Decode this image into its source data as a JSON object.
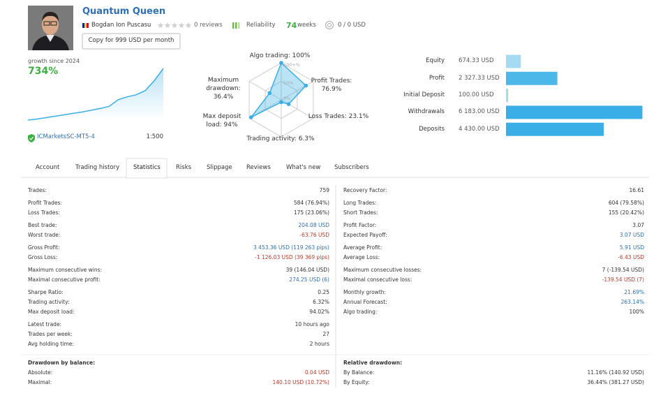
{
  "header": {
    "title": "Quantum Queen",
    "author": "Bogdan Ion Puscasu",
    "reviews": "0 reviews",
    "reliability": "Reliability",
    "weeks": "74",
    "weeks_unit": "weeks",
    "subscription": "0 / 0 USD",
    "copy_button": "Copy for 999 USD per month"
  },
  "broker": {
    "server": "ICMarketsSC-MT5-4",
    "leverage": "1:500"
  },
  "chart_data": [
    {
      "type": "line",
      "title": "growth since 2024",
      "headline": "734%",
      "values": [
        0,
        15,
        35,
        55,
        75,
        95,
        115,
        140,
        165,
        195,
        290,
        330,
        360,
        420,
        560,
        734
      ],
      "ylim": [
        0,
        734
      ],
      "color": "#3aaee6"
    },
    {
      "type": "radar",
      "categories": [
        "Algo trading: 100%",
        "Profit Trades: 76.9%",
        "Loss Trades: 23.1%",
        "Trading activity: 6.3%",
        "Max deposit load: 94%",
        "Maximum drawdown: 36.4%"
      ],
      "values": [
        100,
        76.9,
        23.1,
        6.3,
        94,
        36.4
      ],
      "rlim": [
        0,
        100
      ],
      "rticks": [
        {
          "value": 0,
          "label": "0%"
        },
        {
          "value": 50,
          "label": "50%"
        },
        {
          "value": 100,
          "label": "100+%"
        }
      ],
      "color": "#3aaee6"
    },
    {
      "type": "bar",
      "orientation": "horizontal",
      "categories": [
        "Equity",
        "Profit",
        "Initial Deposit",
        "Withdrawals",
        "Deposits"
      ],
      "values": [
        674.33,
        2327.33,
        100.0,
        6183.0,
        4430.0
      ],
      "value_labels": [
        "674.33 USD",
        "2 327.33 USD",
        "100.00 USD",
        "6 183.00 USD",
        "4 430.00 USD"
      ],
      "colors": [
        "#a6daf3",
        "#4cb8e9",
        "#a6daf3",
        "#3aaee6",
        "#3aaee6"
      ],
      "xlim": [
        0,
        6200
      ]
    }
  ],
  "tabs": {
    "items": [
      "Account",
      "Trading history",
      "Statistics",
      "Risks",
      "Slippage",
      "Reviews",
      "What's new",
      "Subscribers"
    ],
    "active": 2
  },
  "stats": {
    "left": [
      [
        {
          "label": "Trades:",
          "value": "759"
        }
      ],
      [
        {
          "label": "Profit Trades:",
          "value": "584 (76.94%)"
        },
        {
          "label": "Loss Trades:",
          "value": "175 (23.06%)"
        }
      ],
      [
        {
          "label": "Best trade:",
          "value": "204.08 USD",
          "color": "#2f6fb5"
        },
        {
          "label": "Worst trade:",
          "value": "-63.76 USD",
          "color": "#c0392b"
        }
      ],
      [
        {
          "label": "Gross Profit:",
          "value": "3 453.36 USD (119 263 pips)",
          "color": "#2f6fb5"
        },
        {
          "label": "Gross Loss:",
          "value": "-1 126.03 USD (39 369 pips)",
          "color": "#c0392b"
        }
      ],
      [
        {
          "label": "Maximum consecutive wins:",
          "value": "39 (146.04 USD)"
        },
        {
          "label": "Maximal consecutive profit:",
          "value": "274.25 USD (6)",
          "color": "#2f6fb5"
        }
      ],
      [
        {
          "label": "Sharpe Ratio:",
          "value": "0.25"
        },
        {
          "label": "Trading activity:",
          "value": "6.32%"
        },
        {
          "label": "Max deposit load:",
          "value": "94.02%"
        }
      ],
      [
        {
          "label": "Latest trade:",
          "value": "10 hours ago"
        },
        {
          "label": "Trades per week:",
          "value": "27"
        },
        {
          "label": "Avg holding time:",
          "value": "2 hours"
        }
      ]
    ],
    "right": [
      [
        {
          "label": "Recovery Factor:",
          "value": "16.61"
        }
      ],
      [
        {
          "label": "Long Trades:",
          "value": "604 (79.58%)"
        },
        {
          "label": "Short Trades:",
          "value": "155 (20.42%)"
        }
      ],
      [
        {
          "label": "Profit Factor:",
          "value": "3.07"
        },
        {
          "label": "Expected Payoff:",
          "value": "3.07 USD",
          "color": "#2f6fb5"
        }
      ],
      [
        {
          "label": "Average Profit:",
          "value": "5.91 USD",
          "color": "#2f6fb5"
        },
        {
          "label": "Average Loss:",
          "value": "-6.43 USD",
          "color": "#c0392b"
        }
      ],
      [
        {
          "label": "Maximum consecutive losses:",
          "value": "7 (-139.54 USD)"
        },
        {
          "label": "Maximal consecutive loss:",
          "value": "-139.54 USD (7)",
          "color": "#c0392b"
        }
      ],
      [
        {
          "label": "Monthly growth:",
          "value": "21.69%",
          "color": "#2f6fb5"
        },
        {
          "label": "Annual Forecast:",
          "value": "263.14%",
          "color": "#2f6fb5"
        },
        {
          "label": "Algo trading:",
          "value": "100%"
        }
      ]
    ]
  },
  "drawdown": {
    "left": {
      "title": "Drawdown by balance:",
      "rows": [
        {
          "label": "Absolute:",
          "value": "0.04 USD",
          "color": "#c0392b"
        },
        {
          "label": "Maximal:",
          "value": "140.10 USD (10.72%)",
          "color": "#c0392b"
        }
      ]
    },
    "right": {
      "title": "Relative drawdown:",
      "rows": [
        {
          "label": "By Balance:",
          "value": "11.16% (140.92 USD)"
        },
        {
          "label": "By Equity:",
          "value": "36.44% (381.27 USD)"
        }
      ]
    }
  }
}
